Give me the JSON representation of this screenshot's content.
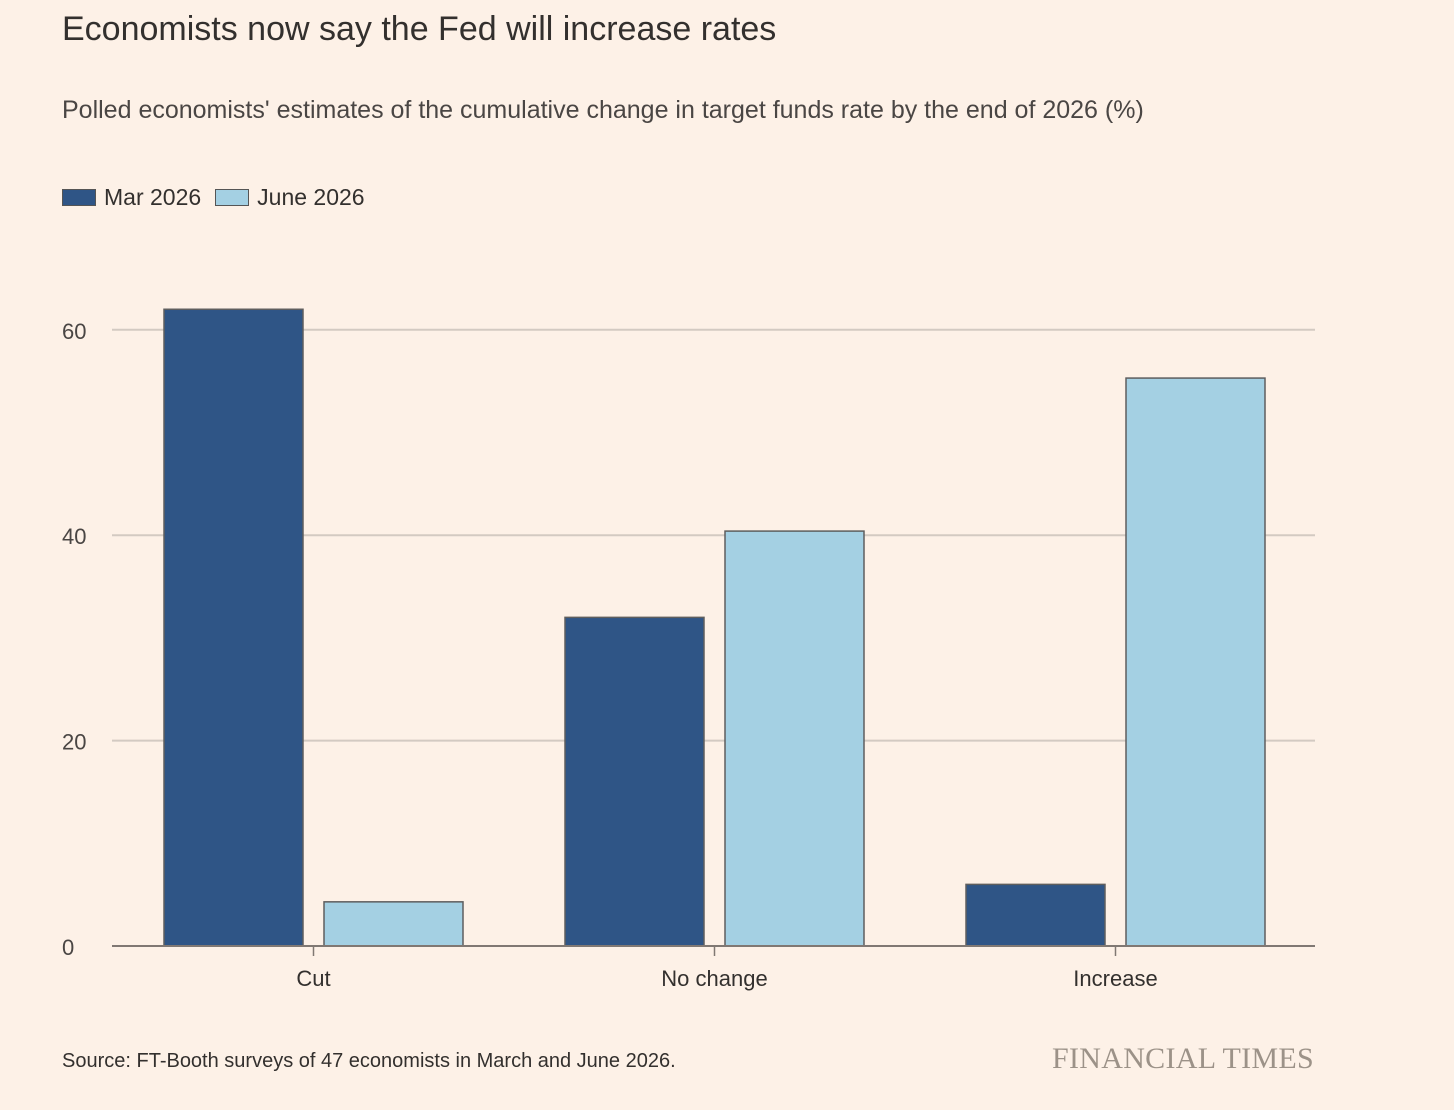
{
  "title": "Economists now say the Fed will increase rates",
  "subtitle": "Polled economists' estimates of the cumulative change in target funds rate by the end of 2026 (%)",
  "source": "Source: FT-Booth surveys of 47 economists in March and June 2026.",
  "brand": "FINANCIAL TIMES",
  "colors": {
    "background": "#FDF1E7",
    "mar": "#2F5586",
    "june": "#A4D0E3",
    "grid": "#D3CAC2",
    "axis": "#807873",
    "bar_edge": "#5E5E5E"
  },
  "chart_data": {
    "type": "bar",
    "categories": [
      "Cut",
      "No change",
      "Increase"
    ],
    "series": [
      {
        "name": "Mar 2026",
        "values": [
          62,
          32,
          6
        ]
      },
      {
        "name": "June 2026",
        "values": [
          4.3,
          40.4,
          55.3
        ]
      }
    ],
    "yticks": [
      "0",
      "20",
      "40",
      "60"
    ],
    "ylim": [
      0,
      70
    ],
    "grid": true,
    "legend": "top-left"
  }
}
